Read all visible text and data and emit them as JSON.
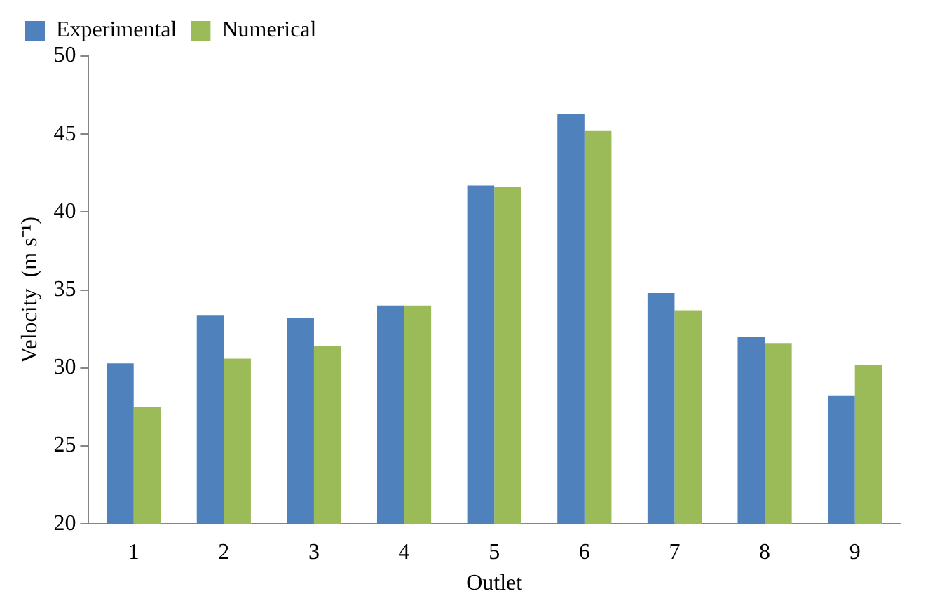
{
  "chart_data": {
    "type": "bar",
    "xlabel": "Outlet",
    "ylabel": "Velocity  (m s⁻¹)",
    "categories": [
      "1",
      "2",
      "3",
      "4",
      "5",
      "6",
      "7",
      "8",
      "9"
    ],
    "series": [
      {
        "name": "Experimental",
        "color": "#4f81bd",
        "values": [
          30.3,
          33.4,
          33.2,
          34.0,
          41.7,
          46.3,
          34.8,
          32.0,
          28.2
        ]
      },
      {
        "name": "Numerical",
        "color": "#9bbb59",
        "values": [
          27.5,
          30.6,
          31.4,
          34.0,
          41.6,
          45.2,
          33.7,
          31.6,
          30.2
        ]
      }
    ],
    "ylim": [
      20,
      50
    ],
    "yticks": [
      20,
      25,
      30,
      35,
      40,
      45,
      50
    ],
    "grid": false,
    "legend": "top left"
  }
}
